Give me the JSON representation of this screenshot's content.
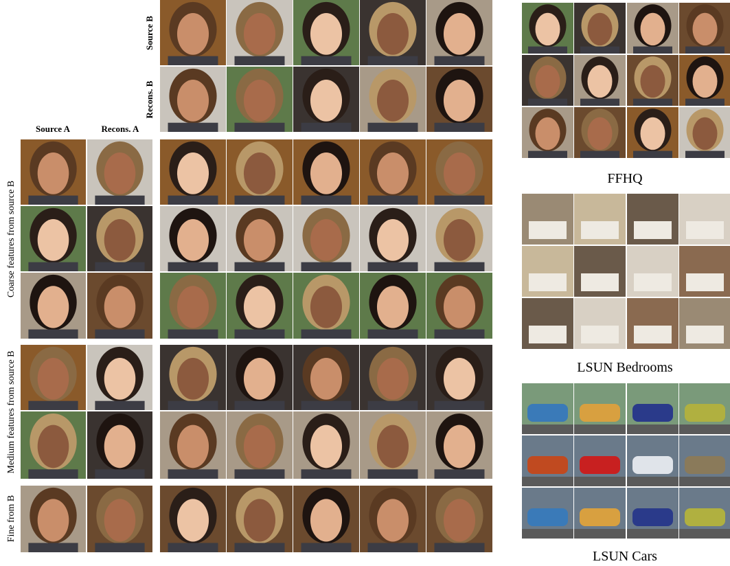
{
  "figure": {
    "row_labels": {
      "source_b": "Source B",
      "recons_b": "Recons. B"
    },
    "column_labels": {
      "source_a": "Source A",
      "recons_a": "Recons. A"
    },
    "group_labels": {
      "coarse": "Coarse features from source B",
      "medium": "Medium features from source B",
      "fine": "Fine from B"
    },
    "datasets": [
      "FFHQ",
      "LSUN Bedrooms",
      "LSUN Cars"
    ]
  }
}
